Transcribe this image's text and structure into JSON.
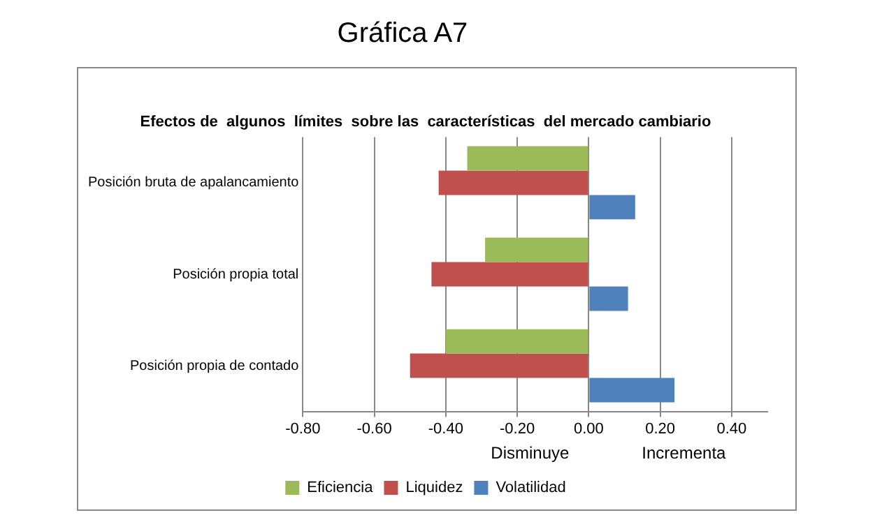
{
  "chart_data": {
    "type": "bar",
    "orientation": "horizontal",
    "title": "Gráfica A7",
    "subtitle": "Efectos de  algunos  límites  sobre las  características  del mercado cambiario",
    "categories": [
      "Posición bruta de apalancamiento",
      "Posición propia total",
      "Posición propia de contado"
    ],
    "series": [
      {
        "name": "Eficiencia",
        "color": "#9bbb59",
        "values": [
          -0.34,
          -0.29,
          -0.4
        ]
      },
      {
        "name": "Liquidez",
        "color": "#c0504d",
        "values": [
          -0.42,
          -0.44,
          -0.5
        ]
      },
      {
        "name": "Volatilidad",
        "color": "#4f81bd",
        "values": [
          0.13,
          0.11,
          0.24
        ]
      }
    ],
    "xlim": [
      -0.8,
      0.5
    ],
    "xticks": [
      {
        "value": -0.8,
        "label": "-0.80"
      },
      {
        "value": -0.6,
        "label": "-0.60"
      },
      {
        "value": -0.4,
        "label": "-0.40"
      },
      {
        "value": -0.2,
        "label": "-0.20"
      },
      {
        "value": 0,
        "label": "0.00"
      },
      {
        "value": 0.2,
        "label": "0.20"
      },
      {
        "value": 0.4,
        "label": "0.40"
      }
    ],
    "grid": "x",
    "legend": "bottom",
    "annotations": [
      "Disminuye",
      "Incrementa"
    ]
  }
}
